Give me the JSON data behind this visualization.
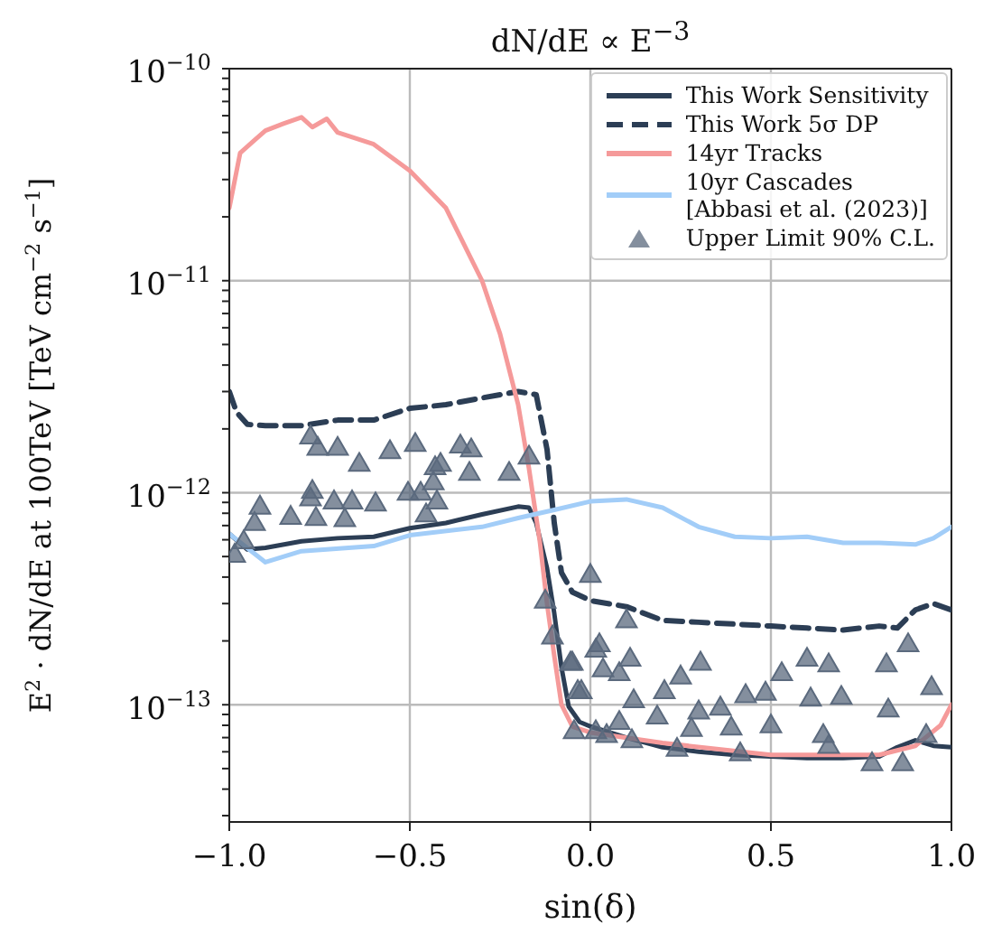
{
  "chart_data": {
    "type": "line",
    "title": "dN/dE ∝ E$^{−3}$",
    "xlabel": "sin(δ)",
    "ylabel": "E$^{2}$ · dN/dE at 100TeV [TeV cm$^{−2}$ s$^{−1}$]",
    "log": "y",
    "grid": true,
    "legend": "top right",
    "xlim": [
      -1,
      1
    ],
    "ylim": [
      2.8e-14,
      1e-10
    ],
    "xticks": [
      {
        "value": -1,
        "label": "−1.0"
      },
      {
        "value": -0.5,
        "label": "−0.5"
      },
      {
        "value": 0,
        "label": "0.0"
      },
      {
        "value": 0.5,
        "label": "0.5"
      },
      {
        "value": 1,
        "label": "1.0"
      }
    ],
    "yticks": [
      {
        "value": 3e-14,
        "label": null
      },
      {
        "value": 4e-14,
        "label": null
      },
      {
        "value": 5e-14,
        "label": null
      },
      {
        "value": 6e-14,
        "label": null
      },
      {
        "value": 7e-14,
        "label": null
      },
      {
        "value": 8e-14,
        "label": null
      },
      {
        "value": 9e-14,
        "label": null
      },
      {
        "value": 1e-13,
        "label": "10$^{−13}$"
      },
      {
        "value": 2e-13,
        "label": null
      },
      {
        "value": 3e-13,
        "label": null
      },
      {
        "value": 4e-13,
        "label": null
      },
      {
        "value": 5e-13,
        "label": null
      },
      {
        "value": 6e-13,
        "label": null
      },
      {
        "value": 7e-13,
        "label": null
      },
      {
        "value": 8e-13,
        "label": null
      },
      {
        "value": 9e-13,
        "label": null
      },
      {
        "value": 1e-12,
        "label": "10$^{−12}$"
      },
      {
        "value": 2e-12,
        "label": null
      },
      {
        "value": 3e-12,
        "label": null
      },
      {
        "value": 4e-12,
        "label": null
      },
      {
        "value": 5e-12,
        "label": null
      },
      {
        "value": 6e-12,
        "label": null
      },
      {
        "value": 7e-12,
        "label": null
      },
      {
        "value": 8e-12,
        "label": null
      },
      {
        "value": 9e-12,
        "label": null
      },
      {
        "value": 1e-11,
        "label": "10$^{−11}$"
      },
      {
        "value": 2e-11,
        "label": null
      },
      {
        "value": 3e-11,
        "label": null
      },
      {
        "value": 4e-11,
        "label": null
      },
      {
        "value": 5e-11,
        "label": null
      },
      {
        "value": 6e-11,
        "label": null
      },
      {
        "value": 7e-11,
        "label": null
      },
      {
        "value": 8e-11,
        "label": null
      },
      {
        "value": 9e-11,
        "label": null
      },
      {
        "value": 1e-10,
        "label": "10$^{−10}$"
      }
    ],
    "series": [
      {
        "name": "This Work Sensitivity",
        "line_style": "solid",
        "marker": "none",
        "color": "#2c3e55",
        "x": [
          -1,
          -0.95,
          -0.9,
          -0.8,
          -0.7,
          -0.6,
          -0.5,
          -0.4,
          -0.3,
          -0.2,
          -0.17,
          -0.15,
          -0.12,
          -0.1,
          -0.08,
          -0.06,
          -0.03,
          0,
          0.1,
          0.2,
          0.3,
          0.4,
          0.5,
          0.6,
          0.7,
          0.8,
          0.85,
          0.9,
          0.95,
          1
        ],
        "values": [
          6.4e-13,
          5.4e-13,
          5.5e-13,
          5.9e-13,
          6.1e-13,
          6.2e-13,
          6.8e-13,
          7.2e-13,
          7.9e-13,
          8.6e-13,
          8.5e-13,
          7.2e-13,
          4.4e-13,
          2.7e-13,
          1.5e-13,
          9.8e-14,
          8.3e-14,
          7.9e-14,
          7e-14,
          6.3e-14,
          6e-14,
          5.8e-14,
          5.7e-14,
          5.6e-14,
          5.6e-14,
          5.7e-14,
          6.3e-14,
          6.8e-14,
          6.4e-14,
          6.3e-14
        ]
      },
      {
        "name": "This Work 5σ DP",
        "line_style": "dashed",
        "marker": "none",
        "color": "#2c3e55",
        "x": [
          -1,
          -0.98,
          -0.95,
          -0.9,
          -0.8,
          -0.7,
          -0.6,
          -0.5,
          -0.4,
          -0.3,
          -0.2,
          -0.15,
          -0.12,
          -0.1,
          -0.08,
          -0.05,
          0,
          0.1,
          0.2,
          0.3,
          0.4,
          0.5,
          0.6,
          0.7,
          0.8,
          0.85,
          0.9,
          0.95,
          1
        ],
        "values": [
          3e-12,
          2.4e-12,
          2.1e-12,
          2.07e-12,
          2.07e-12,
          2.2e-12,
          2.2e-12,
          2.5e-12,
          2.6e-12,
          2.8e-12,
          3e-12,
          2.9e-12,
          1.6e-12,
          7.2e-13,
          4.2e-13,
          3.4e-13,
          3.1e-13,
          2.9e-13,
          2.5e-13,
          2.45e-13,
          2.4e-13,
          2.35e-13,
          2.3e-13,
          2.25e-13,
          2.35e-13,
          2.3e-13,
          2.8e-13,
          3e-13,
          2.8e-13
        ]
      },
      {
        "name": "14yr Tracks",
        "line_style": "solid",
        "marker": "none",
        "color": "#f59a9a",
        "x": [
          -1,
          -0.97,
          -0.93,
          -0.9,
          -0.85,
          -0.8,
          -0.77,
          -0.73,
          -0.7,
          -0.6,
          -0.5,
          -0.4,
          -0.3,
          -0.25,
          -0.2,
          -0.17,
          -0.14,
          -0.12,
          -0.1,
          -0.08,
          -0.05,
          0,
          0.2,
          0.5,
          0.8,
          0.9,
          0.97,
          1
        ],
        "values": [
          2.2e-11,
          4e-11,
          4.6e-11,
          5.1e-11,
          5.5e-11,
          5.9e-11,
          5.3e-11,
          5.8e-11,
          5e-11,
          4.4e-11,
          3.3e-11,
          2.2e-11,
          1e-11,
          5.6e-12,
          2.6e-12,
          1.3e-12,
          5.9e-13,
          3e-13,
          1.7e-13,
          1e-13,
          7.9e-14,
          7.4e-14,
          6.6e-14,
          5.8e-14,
          5.8e-14,
          6.4e-14,
          8e-14,
          1e-13
        ]
      },
      {
        "name": "10yr Cascades\n[Abbasi et al. (2023)]",
        "line_style": "solid",
        "marker": "none",
        "color": "#a2cdf8",
        "x": [
          -1,
          -0.9,
          -0.8,
          -0.6,
          -0.5,
          -0.3,
          -0.2,
          -0.1,
          0,
          0.1,
          0.2,
          0.3,
          0.4,
          0.5,
          0.6,
          0.7,
          0.8,
          0.9,
          0.95,
          1
        ],
        "values": [
          6.4e-13,
          4.7e-13,
          5.3e-13,
          5.6e-13,
          6.3e-13,
          6.9e-13,
          7.6e-13,
          8.3e-13,
          9.1e-13,
          9.3e-13,
          8.5e-13,
          6.9e-13,
          6.2e-13,
          6.1e-13,
          6.2e-13,
          5.8e-13,
          5.8e-13,
          5.7e-13,
          6.1e-13,
          6.9e-13
        ]
      },
      {
        "name": "Upper Limit 90% C.L.",
        "type": "scatter",
        "marker": "triangle",
        "color": "#5b6a7e",
        "x": [
          -0.775,
          -0.755,
          -0.7,
          -0.64,
          -0.555,
          -0.485,
          -0.415,
          -0.43,
          -0.36,
          -0.33,
          -0.335,
          -0.225,
          -0.17,
          -0.435,
          -0.77,
          -0.775,
          -0.915,
          -0.93,
          -0.83,
          -0.76,
          -0.71,
          -0.66,
          -0.68,
          -0.595,
          -0.505,
          -0.47,
          -0.425,
          -0.455,
          -0.985,
          -0.96,
          0.0,
          0.1,
          0.025,
          0.11,
          -0.055,
          0.035,
          0.08,
          0.305,
          0.25,
          0.205,
          0.43,
          0.485,
          0.6,
          0.66,
          0.82,
          0.88,
          0.945,
          0.53,
          0.36,
          0.5,
          0.61,
          0.695,
          0.3,
          0.12,
          -0.025,
          0.185,
          0.39,
          0.825,
          0.645,
          0.66,
          0.78,
          0.865,
          0.93,
          0.045,
          0.08,
          0.28,
          -0.125,
          -0.105,
          -0.05,
          0.015,
          -0.035,
          -0.045,
          0.015,
          0.115,
          0.24,
          0.415
        ],
        "values": [
          1.84e-12,
          1.63e-12,
          1.63e-12,
          1.37e-12,
          1.57e-12,
          1.7e-12,
          1.37e-12,
          1.32e-12,
          1.67e-12,
          1.6e-12,
          1.24e-12,
          1.24e-12,
          1.48e-12,
          1.12e-12,
          1.02e-12,
          9.4e-13,
          8.6e-13,
          7.2e-13,
          7.7e-13,
          7.6e-13,
          9.1e-13,
          9.1e-13,
          7.5e-13,
          8.9e-13,
          1e-12,
          1e-12,
          9.1e-13,
          7.9e-13,
          5.1e-13,
          5.9e-13,
          4.1e-13,
          2.5e-13,
          1.93e-13,
          1.65e-13,
          1.58e-13,
          1.47e-13,
          1.41e-13,
          1.58e-13,
          1.36e-13,
          1.16e-13,
          1.11e-13,
          1.14e-13,
          1.65e-13,
          1.55e-13,
          1.55e-13,
          1.93e-13,
          1.21e-13,
          1.41e-13,
          9.7e-14,
          8e-14,
          1.07e-13,
          1.09e-13,
          9.3e-14,
          1.05e-13,
          1.16e-13,
          8.8e-14,
          7.8e-14,
          9.5e-14,
          7.2e-14,
          6.4e-14,
          5.3e-14,
          5.3e-14,
          7.2e-14,
          7.2e-14,
          8.3e-14,
          7.7e-14,
          3.1e-13,
          2.1e-13,
          1.58e-13,
          1.82e-13,
          1.16e-13,
          7.5e-14,
          7.5e-14,
          6.8e-14,
          6.2e-14,
          5.9e-14
        ]
      }
    ]
  }
}
